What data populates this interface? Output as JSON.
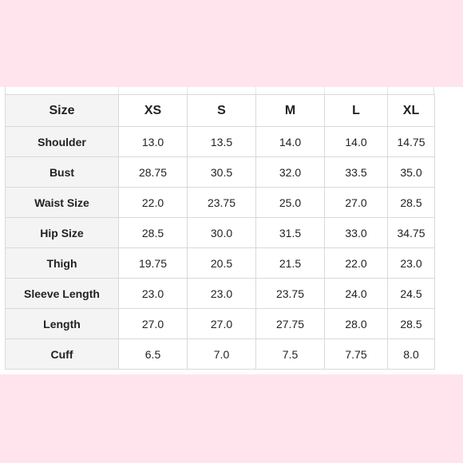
{
  "colors": {
    "background_pink": "#ffe4ee",
    "table_border": "#d9d9d9",
    "label_column_bg": "#f4f4f4"
  },
  "table": {
    "corner_label": "Size",
    "columns": [
      "XS",
      "S",
      "M",
      "L",
      "XL"
    ],
    "rows": [
      {
        "label": "Shoulder",
        "values": [
          "13.0",
          "13.5",
          "14.0",
          "14.0",
          "14.75"
        ]
      },
      {
        "label": "Bust",
        "values": [
          "28.75",
          "30.5",
          "32.0",
          "33.5",
          "35.0"
        ]
      },
      {
        "label": "Waist Size",
        "values": [
          "22.0",
          "23.75",
          "25.0",
          "27.0",
          "28.5"
        ]
      },
      {
        "label": "Hip Size",
        "values": [
          "28.5",
          "30.0",
          "31.5",
          "33.0",
          "34.75"
        ]
      },
      {
        "label": "Thigh",
        "values": [
          "19.75",
          "20.5",
          "21.5",
          "22.0",
          "23.0"
        ]
      },
      {
        "label": "Sleeve Length",
        "values": [
          "23.0",
          "23.0",
          "23.75",
          "24.0",
          "24.5"
        ]
      },
      {
        "label": "Length",
        "values": [
          "27.0",
          "27.0",
          "27.75",
          "28.0",
          "28.5"
        ]
      },
      {
        "label": "Cuff",
        "values": [
          "6.5",
          "7.0",
          "7.5",
          "7.75",
          "8.0"
        ]
      }
    ]
  }
}
